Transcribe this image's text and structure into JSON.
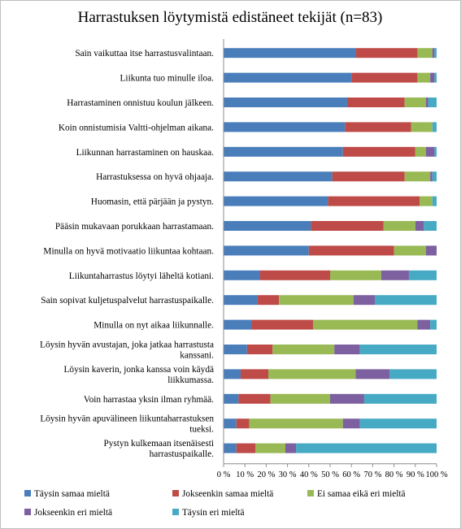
{
  "chart_data": {
    "type": "bar",
    "stacked": "percent",
    "orientation": "horizontal",
    "title": "Harrastuksen löytymistä edistäneet tekijät (n=83)",
    "categories": [
      "Sain vaikuttaa itse harrastusvalintaan.",
      "Liikunta tuo minulle iloa.",
      "Harrastaminen onnistuu koulun jälkeen.",
      "Koin onnistumisia Valtti-ohjelman aikana.",
      "Liikunnan harrastaminen on hauskaa.",
      "Harrastuksessa on hyvä ohjaaja.",
      "Huomasin, että pärjään ja pystyn.",
      "Pääsin mukavaan porukkaan harrastamaan.",
      "Minulla on hyvä motivaatio liikuntaa kohtaan.",
      "Liikuntaharrastus löytyi läheltä kotiani.",
      "Sain sopivat kuljetuspalvelut harrastuspaikalle.",
      "Minulla on nyt aikaa liikunnalle.",
      "Löysin hyvän avustajan, joka jatkaa harrastusta kanssani.",
      "Löysin kaverin, jonka kanssa voin käydä liikkumassa.",
      "Voin harrastaa yksin ilman ryhmää.",
      "Löysin hyvän apuvälineen liikuntaharrastuksen tueksi.",
      "Pystyn kulkemaan itsenäisesti harrastuspaikalle."
    ],
    "category_lines": [
      [
        "Sain vaikuttaa itse harrastusvalintaan."
      ],
      [
        "Liikunta tuo minulle iloa."
      ],
      [
        "Harrastaminen onnistuu koulun jälkeen."
      ],
      [
        "Koin onnistumisia Valtti-ohjelman aikana."
      ],
      [
        "Liikunnan harrastaminen on hauskaa."
      ],
      [
        "Harrastuksessa on hyvä ohjaaja."
      ],
      [
        "Huomasin, että pärjään ja pystyn."
      ],
      [
        "Pääsin mukavaan porukkaan harrastamaan."
      ],
      [
        "Minulla on hyvä motivaatio liikuntaa kohtaan."
      ],
      [
        "Liikuntaharrastus löytyi läheltä kotiani."
      ],
      [
        "Sain sopivat kuljetuspalvelut harrastuspaikalle."
      ],
      [
        "Minulla on nyt aikaa liikunnalle."
      ],
      [
        "Löysin hyvän avustajan, joka jatkaa harrastusta",
        "kanssani."
      ],
      [
        "Löysin kaverin, jonka kanssa voin käydä",
        "liikkumassa."
      ],
      [
        "Voin harrastaa yksin ilman ryhmää."
      ],
      [
        "Löysin hyvän apuvälineen liikuntaharrastuksen",
        "tueksi."
      ],
      [
        "Pystyn kulkemaan itsenäisesti",
        "harrastuspaikalle."
      ]
    ],
    "series": [
      {
        "name": "Täysin samaa mieltä",
        "color": "#4a7ebb",
        "values": [
          62,
          60,
          58,
          57,
          56,
          51,
          49,
          41,
          40,
          17,
          16,
          13,
          11,
          8,
          7,
          6,
          6
        ]
      },
      {
        "name": "Jokseenkin samaa mieltä",
        "color": "#be4b48",
        "values": [
          29,
          31,
          27,
          31,
          34,
          34,
          43,
          34,
          40,
          33,
          10,
          29,
          12,
          13,
          15,
          6,
          9
        ]
      },
      {
        "name": "Ei samaa eikä eri mieltä",
        "color": "#98b954",
        "values": [
          7,
          6,
          10,
          10,
          5,
          12,
          6,
          15,
          15,
          24,
          35,
          49,
          29,
          41,
          28,
          44,
          14
        ]
      },
      {
        "name": "Jokseenkin eri mieltä",
        "color": "#7d60a0",
        "values": [
          1,
          2,
          1,
          0,
          4,
          1,
          0,
          4,
          5,
          13,
          10,
          6,
          12,
          16,
          16,
          8,
          5
        ]
      },
      {
        "name": "Täysin eri mieltä",
        "color": "#46aac5",
        "values": [
          1,
          1,
          4,
          2,
          1,
          2,
          2,
          6,
          0,
          13,
          29,
          3,
          36,
          22,
          34,
          36,
          66
        ]
      }
    ],
    "x_ticks": [
      "0 %",
      "10 %",
      "20 %",
      "30 %",
      "40 %",
      "50 %",
      "60 %",
      "70 %",
      "80 %",
      "90 %",
      "100 %"
    ],
    "xlim": [
      0,
      100
    ],
    "grid": false,
    "legend_position": "bottom"
  }
}
